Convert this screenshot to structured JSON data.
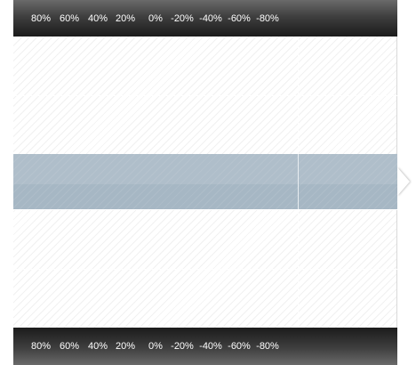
{
  "scale": {
    "ticks": [
      "80%",
      "60%",
      "40%",
      "20%",
      "0%",
      "-20%",
      "-40%",
      "-60%",
      "-80%"
    ]
  },
  "selection": {
    "active_row": 3
  }
}
